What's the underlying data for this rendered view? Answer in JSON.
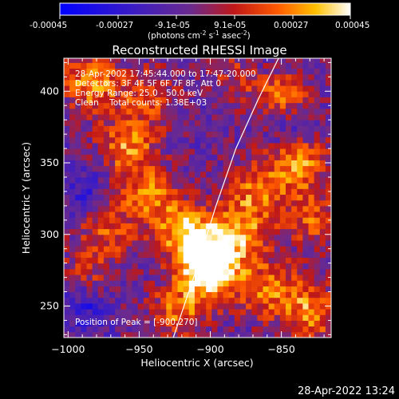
{
  "colorbar": {
    "tick_labels": [
      "-0.00045",
      "-0.00027",
      "-9.1e-05",
      "9.1e-05",
      "0.00027",
      "0.00045"
    ],
    "units_prefix": "(photons cm",
    "units_exp1": "-2",
    "units_mid": " s",
    "units_exp2": "-1",
    "units_mid2": " asec",
    "units_exp3": "-2",
    "units_suffix": ")"
  },
  "plot": {
    "title": "Reconstructed RHESSI Image",
    "info_lines": [
      "28-Apr-2002 17:45:44.000 to 17:47:20.000",
      "Detectors: 3F 4F 5F 6F 7F 8F, Att 0",
      "Energy Range: 25.0 - 50.0 keV",
      "Clean    Total counts: 1.38E+03"
    ],
    "peak_label": "Position of Peak = [-900,270]",
    "footer_timestamp": "28-Apr-2022 13:24"
  },
  "chart_data": {
    "type": "heatmap",
    "title": "Reconstructed RHESSI Image",
    "xlabel": "Heliocentric X (arcsec)",
    "ylabel": "Heliocentric Y (arcsec)",
    "xlim": [
      -1003,
      -815
    ],
    "ylim": [
      228,
      423
    ],
    "x_ticks": [
      -1000,
      -950,
      -900,
      -850
    ],
    "x_tick_labels": [
      "−1000",
      "−950",
      "−900",
      "−850"
    ],
    "y_ticks": [
      250,
      300,
      350,
      400
    ],
    "y_tick_labels": [
      "250",
      "300",
      "350",
      "400"
    ],
    "color_range": [
      -0.00045,
      0.00045
    ],
    "colormap": "blue-purple-red-yellow-white",
    "peak_position": [
      -900,
      270
    ],
    "limb_curve": [
      [
        -926,
        228
      ],
      [
        -910,
        275
      ],
      [
        -896,
        320
      ],
      [
        -882,
        360
      ],
      [
        -866,
        395
      ],
      [
        -852,
        423
      ]
    ],
    "hotspots": [
      {
        "x": -985,
        "y": 405,
        "amp": 0.85
      },
      {
        "x": -960,
        "y": 360,
        "amp": 0.75
      },
      {
        "x": -945,
        "y": 325,
        "amp": 0.7
      },
      {
        "x": -920,
        "y": 300,
        "amp": 0.8
      },
      {
        "x": -905,
        "y": 285,
        "amp": 0.9
      },
      {
        "x": -900,
        "y": 270,
        "amp": 1.0
      },
      {
        "x": -880,
        "y": 300,
        "amp": 0.75
      },
      {
        "x": -870,
        "y": 330,
        "amp": 0.65
      },
      {
        "x": -840,
        "y": 350,
        "amp": 0.85
      },
      {
        "x": -830,
        "y": 310,
        "amp": 0.6
      },
      {
        "x": -860,
        "y": 260,
        "amp": 0.7
      },
      {
        "x": -830,
        "y": 245,
        "amp": 0.75
      },
      {
        "x": -975,
        "y": 300,
        "amp": 0.55
      },
      {
        "x": -990,
        "y": 265,
        "amp": 0.5
      },
      {
        "x": -925,
        "y": 245,
        "amp": 0.65
      },
      {
        "x": -945,
        "y": 395,
        "amp": 0.55
      },
      {
        "x": -880,
        "y": 410,
        "amp": 0.5
      },
      {
        "x": -850,
        "y": 395,
        "amp": 0.6
      }
    ],
    "coldspots": [
      {
        "x": -990,
        "y": 250,
        "amp": 0.9
      },
      {
        "x": -845,
        "y": 370,
        "amp": 0.6
      },
      {
        "x": -990,
        "y": 330,
        "amp": 0.5
      },
      {
        "x": -870,
        "y": 415,
        "amp": 0.4
      }
    ]
  }
}
